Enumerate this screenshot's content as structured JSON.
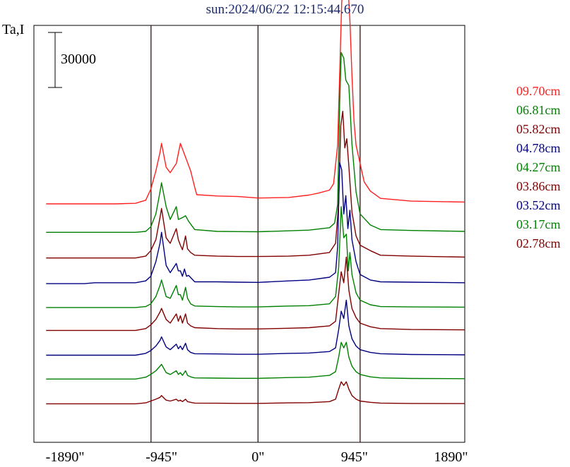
{
  "title": "sun:2024/06/22 12:15:44.670",
  "ylabel": "Ta,I",
  "scale_bar_label": "30000",
  "chart_data": {
    "type": "line",
    "title": "sun:2024/06/22 12:15:44.670",
    "ylabel": "Ta,I",
    "xlim": [
      -2195,
      2025
    ],
    "x_ticks": [
      -1890,
      -945,
      0,
      945,
      1890
    ],
    "x_tick_labels": [
      "-1890\"",
      "-945\"",
      "0\"",
      "945\"",
      "1890\""
    ],
    "vlines": [
      -1048,
      0,
      1000
    ],
    "grid": false,
    "legend": "right, outside",
    "series": [
      {
        "name": "09.70cm",
        "color": "#ff2020",
        "offset": 130000,
        "x": [
          -2075,
          -1400,
          -1200,
          -1100,
          -1050,
          -1000,
          -960,
          -945,
          -900,
          -860,
          -800,
          -760,
          -700,
          -660,
          -620,
          -600,
          -400,
          -200,
          0,
          300,
          500,
          600,
          700,
          740,
          780,
          820,
          840,
          860,
          880,
          900,
          920,
          940,
          960,
          1000,
          1040,
          1100,
          1200,
          1500,
          2025
        ],
        "y": [
          0,
          0,
          300,
          2000,
          8000,
          18000,
          28000,
          33000,
          20000,
          17000,
          22000,
          33000,
          24000,
          18000,
          9000,
          5000,
          4300,
          4000,
          3200,
          3500,
          4800,
          6000,
          7500,
          11000,
          32000,
          110000,
          122000,
          123000,
          120000,
          100000,
          70000,
          45000,
          32000,
          22000,
          12000,
          7000,
          3000,
          1500,
          1000
        ]
      },
      {
        "name": "06.81cm",
        "color": "#008000",
        "offset": 114500,
        "x": [
          -2075,
          -1200,
          -1100,
          -1050,
          -1000,
          -960,
          -945,
          -900,
          -860,
          -800,
          -780,
          -740,
          -710,
          -680,
          -620,
          -400,
          -200,
          0,
          300,
          500,
          700,
          750,
          780,
          800,
          815,
          840,
          860,
          890,
          920,
          960,
          1000,
          1100,
          1200,
          1500,
          2025
        ],
        "y": [
          0,
          0,
          500,
          3000,
          10000,
          22000,
          27000,
          14000,
          7000,
          14000,
          7000,
          8000,
          9000,
          6000,
          1500,
          500,
          400,
          300,
          800,
          1200,
          2500,
          5000,
          15000,
          70000,
          98000,
          95000,
          83000,
          80000,
          48000,
          22000,
          10000,
          4000,
          1500,
          1000,
          500
        ]
      },
      {
        "name": "05.82cm",
        "color": "#800000",
        "offset": 100500,
        "x": [
          -2075,
          -1200,
          -1100,
          -1050,
          -1000,
          -960,
          -945,
          -900,
          -860,
          -800,
          -780,
          -760,
          -740,
          -710,
          -690,
          -660,
          -620,
          -400,
          -200,
          0,
          300,
          500,
          700,
          760,
          790,
          810,
          830,
          850,
          870,
          890,
          920,
          960,
          1000,
          1100,
          1200,
          1500,
          2025
        ],
        "y": [
          0,
          0,
          1000,
          4000,
          10000,
          22000,
          27000,
          11000,
          8000,
          16000,
          10000,
          7000,
          4500,
          12000,
          5000,
          3000,
          1500,
          1000,
          800,
          800,
          1000,
          1500,
          3000,
          8000,
          30000,
          72000,
          80000,
          60000,
          65000,
          50000,
          25000,
          12000,
          7000,
          4000,
          1500,
          1000,
          500
        ]
      },
      {
        "name": "04.78cm",
        "color": "#000080",
        "offset": 86500,
        "x": [
          -2075,
          -1700,
          -1600,
          -1200,
          -1100,
          -1050,
          -1000,
          -960,
          -945,
          -900,
          -860,
          -800,
          -780,
          -760,
          -740,
          -720,
          -700,
          -680,
          -620,
          -400,
          -200,
          0,
          300,
          500,
          700,
          760,
          780,
          800,
          820,
          840,
          860,
          880,
          900,
          920,
          960,
          1000,
          1100,
          1200,
          1500,
          2025
        ],
        "y": [
          0,
          0,
          500,
          500,
          1500,
          4000,
          12000,
          22000,
          28000,
          10000,
          6000,
          11000,
          7000,
          7000,
          4000,
          8000,
          4000,
          4500,
          1000,
          1000,
          800,
          700,
          1500,
          2000,
          3500,
          6000,
          20000,
          66000,
          62000,
          38000,
          48000,
          30000,
          40000,
          24000,
          12000,
          5000,
          2000,
          1000,
          800,
          500
        ]
      },
      {
        "name": "04.27cm",
        "color": "#008000",
        "offset": 73500,
        "x": [
          -2075,
          -1200,
          -1100,
          -1050,
          -1000,
          -960,
          -945,
          -900,
          -860,
          -800,
          -780,
          -760,
          -740,
          -710,
          -690,
          -660,
          -620,
          -400,
          -200,
          0,
          300,
          500,
          700,
          760,
          790,
          815,
          840,
          865,
          885,
          900,
          920,
          960,
          1000,
          1100,
          1200,
          1500,
          2025
        ],
        "y": [
          0,
          0,
          500,
          2000,
          6000,
          12000,
          15000,
          6000,
          5000,
          12000,
          7000,
          7000,
          4000,
          11000,
          5000,
          2000,
          800,
          500,
          300,
          300,
          800,
          1000,
          2000,
          6000,
          22000,
          55000,
          38000,
          40000,
          20000,
          30000,
          18000,
          8000,
          4000,
          1500,
          500,
          300,
          200
        ]
      },
      {
        "name": "03.86cm",
        "color": "#800000",
        "offset": 61000,
        "x": [
          -2075,
          -1200,
          -1100,
          -1050,
          -1000,
          -960,
          -945,
          -900,
          -860,
          -800,
          -780,
          -760,
          -740,
          -710,
          -690,
          -660,
          -620,
          -400,
          -200,
          0,
          300,
          500,
          700,
          760,
          790,
          815,
          840,
          865,
          890,
          920,
          960,
          1000,
          1100,
          1200,
          1500,
          2025
        ],
        "y": [
          0,
          0,
          1000,
          3000,
          6000,
          10000,
          12000,
          6000,
          4000,
          9000,
          5000,
          8000,
          4000,
          9000,
          4000,
          2500,
          1500,
          1000,
          800,
          800,
          1200,
          1500,
          2500,
          5000,
          20000,
          32000,
          26000,
          40000,
          22000,
          12000,
          7000,
          4000,
          2000,
          1000,
          500,
          300
        ]
      },
      {
        "name": "03.52cm",
        "color": "#000080",
        "offset": 47500,
        "x": [
          -2075,
          -1200,
          -1100,
          -1050,
          -1000,
          -960,
          -945,
          -900,
          -860,
          -800,
          -780,
          -760,
          -740,
          -710,
          -690,
          -660,
          -620,
          -400,
          -200,
          0,
          300,
          500,
          700,
          760,
          790,
          815,
          840,
          865,
          890,
          920,
          960,
          1000,
          1100,
          1200,
          1500,
          2025
        ],
        "y": [
          0,
          0,
          1000,
          2500,
          5000,
          8000,
          10000,
          4500,
          3000,
          6000,
          3500,
          5000,
          3000,
          6500,
          3000,
          1500,
          800,
          700,
          500,
          500,
          1000,
          1200,
          2000,
          4000,
          14000,
          24000,
          20000,
          30000,
          16000,
          9000,
          5000,
          3000,
          1500,
          800,
          400,
          200
        ]
      },
      {
        "name": "03.17cm",
        "color": "#008000",
        "offset": 34500,
        "x": [
          -2075,
          -1200,
          -1100,
          -1050,
          -1000,
          -960,
          -945,
          -900,
          -860,
          -800,
          -780,
          -760,
          -740,
          -710,
          -690,
          -660,
          -620,
          -400,
          -200,
          0,
          300,
          500,
          700,
          760,
          790,
          815,
          840,
          865,
          890,
          920,
          960,
          1000,
          1100,
          1200,
          1500,
          2025
        ],
        "y": [
          0,
          0,
          1000,
          2500,
          4500,
          7000,
          8000,
          3500,
          2500,
          4500,
          2500,
          3500,
          2000,
          4500,
          2000,
          1200,
          600,
          500,
          400,
          400,
          800,
          1000,
          2000,
          4000,
          12000,
          20000,
          17000,
          20000,
          12000,
          7000,
          4000,
          2500,
          1200,
          600,
          300,
          200
        ]
      },
      {
        "name": "02.78cm",
        "color": "#800000",
        "offset": 21000,
        "x": [
          -2075,
          -1200,
          -1100,
          -1050,
          -1000,
          -960,
          -945,
          -900,
          -860,
          -800,
          -780,
          -760,
          -740,
          -710,
          -690,
          -660,
          -620,
          -400,
          -200,
          0,
          300,
          500,
          700,
          760,
          790,
          815,
          840,
          865,
          890,
          920,
          960,
          1000,
          1100,
          1200,
          1500,
          2025
        ],
        "y": [
          0,
          0,
          500,
          1500,
          2500,
          3500,
          4500,
          2000,
          1500,
          2500,
          1500,
          2000,
          1200,
          2500,
          1200,
          800,
          400,
          300,
          250,
          250,
          500,
          600,
          1200,
          2500,
          8000,
          12000,
          10000,
          12000,
          8000,
          4500,
          2500,
          1500,
          800,
          400,
          200,
          100
        ]
      }
    ]
  }
}
